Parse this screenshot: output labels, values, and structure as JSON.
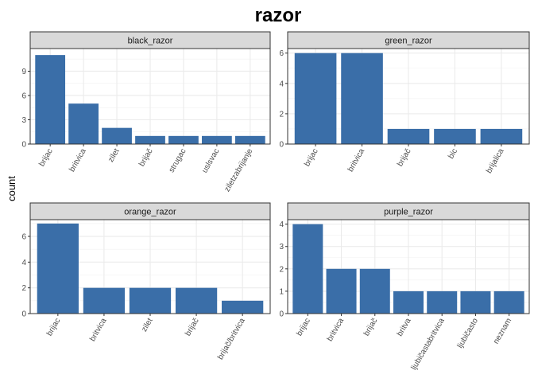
{
  "chart_data": {
    "type": "bar",
    "title": "razor",
    "ylabel": "count",
    "xlabel": "",
    "grid": true,
    "bar_color": "#3a6ea8",
    "strip_color": "#d9d9d9",
    "panels": [
      {
        "name": "black_razor",
        "categories": [
          "brijac",
          "britvica",
          "zilet",
          "brijač",
          "strugac",
          "uslsvac",
          "ziletzabrijanje"
        ],
        "values": [
          11,
          5,
          2,
          1,
          1,
          1,
          1
        ],
        "ylim": [
          0,
          11.8
        ],
        "yticks": [
          0,
          3,
          6,
          9
        ]
      },
      {
        "name": "green_razor",
        "categories": [
          "brijac",
          "britvica",
          "brijač",
          "bic",
          "brijalica"
        ],
        "values": [
          6,
          6,
          1,
          1,
          1
        ],
        "ylim": [
          0,
          6.3
        ],
        "yticks": [
          0,
          2,
          4,
          6
        ]
      },
      {
        "name": "orange_razor",
        "categories": [
          "brijac",
          "britvica",
          "zilet",
          "brijač",
          "brijač/britvica"
        ],
        "values": [
          7,
          2,
          2,
          2,
          1
        ],
        "ylim": [
          0,
          7.3
        ],
        "yticks": [
          0,
          2,
          4,
          6
        ]
      },
      {
        "name": "purple_razor",
        "categories": [
          "brijac",
          "britvica",
          "brijač",
          "britva",
          "ljubičastabritvica",
          "ljubičasto",
          "neznam"
        ],
        "values": [
          4,
          2,
          2,
          1,
          1,
          1,
          1
        ],
        "ylim": [
          0,
          4.2
        ],
        "yticks": [
          0,
          1,
          2,
          3,
          4
        ]
      }
    ]
  }
}
